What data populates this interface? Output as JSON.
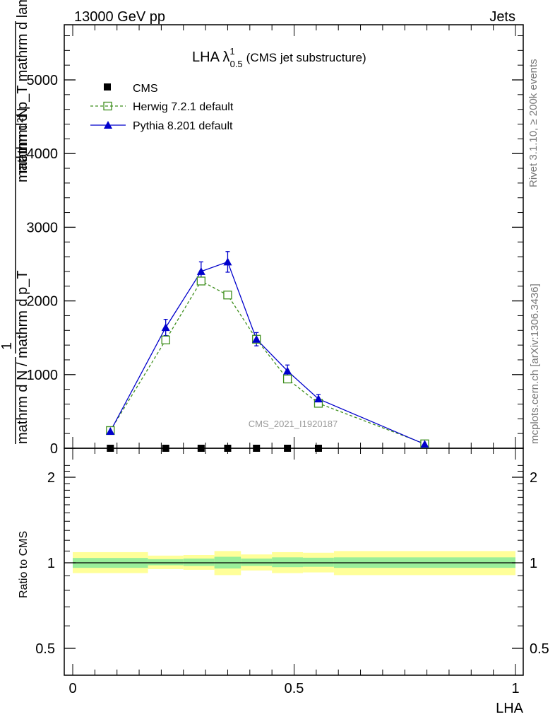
{
  "header": {
    "left": "13000 GeV pp",
    "right": "Jets"
  },
  "side_labels": {
    "rivet": "Rivet 3.1.10, ≥ 200k events",
    "mcplots": "mcplots.cern.ch [arXiv:1306.3436]"
  },
  "watermark": "CMS_2021_I1920187",
  "ratio_ylabel": "Ratio to CMS",
  "main_ylabel_lines": [
    "mathrm d²N",
    "mathrm d p_T mathrm d lambda",
    "1",
    "mathrm d N / mathrm d p_T"
  ],
  "main_ylabel_sub": [
    "2",
    "T",
    "T"
  ],
  "colors": {
    "herwig": "#3f8f1e",
    "pythia": "#0000cc",
    "band_inner": "#99ee99",
    "band_outer": "#ffff99"
  },
  "chart_data": [
    {
      "type": "line",
      "title": "LHA λ",
      "title_sup": "1",
      "title_sub": "0.5",
      "title_suffix": "(CMS jet substructure)",
      "xlim": [
        -0.02,
        1.02
      ],
      "ylim": [
        0,
        5800
      ],
      "yticks": [
        0,
        1000,
        2000,
        3000,
        4000,
        5000
      ],
      "ytick_labels": [
        "0",
        "1000",
        "2000",
        "3000",
        "4000",
        "5000"
      ],
      "series": [
        {
          "name": "CMS",
          "marker": "square-filled",
          "x": [
            0.085,
            0.21,
            0.29,
            0.35,
            0.415,
            0.485,
            0.555
          ],
          "y": [
            0,
            0,
            0,
            0,
            0,
            0,
            0
          ]
        },
        {
          "name": "Herwig 7.2.1 default",
          "marker": "square-open",
          "x": [
            0.085,
            0.21,
            0.29,
            0.35,
            0.415,
            0.485,
            0.555,
            0.795
          ],
          "y": [
            240,
            1470,
            2270,
            2080,
            1480,
            940,
            610,
            60
          ],
          "err": [
            0,
            0,
            0,
            0,
            0,
            0,
            0,
            0
          ]
        },
        {
          "name": "Pythia 8.201 default",
          "marker": "triangle-filled",
          "x": [
            0.085,
            0.21,
            0.29,
            0.35,
            0.415,
            0.485,
            0.555,
            0.795
          ],
          "y": [
            230,
            1640,
            2400,
            2530,
            1480,
            1050,
            670,
            55
          ],
          "err": [
            0,
            110,
            130,
            140,
            90,
            80,
            60,
            0
          ]
        }
      ]
    },
    {
      "type": "area",
      "xlabel": "LHA",
      "ylabel": "Ratio to CMS",
      "xlim": [
        -0.02,
        1.02
      ],
      "ylim": [
        0.4,
        2.3
      ],
      "log_y": true,
      "xticks": [
        0,
        0.5,
        1
      ],
      "xtick_labels": [
        "0",
        "0.5",
        "1"
      ],
      "yticks": [
        0.5,
        1,
        2
      ],
      "ytick_labels": [
        "0.5",
        "1",
        "2"
      ],
      "bins": [
        {
          "x0": 0.0,
          "x1": 0.17,
          "inner": [
            0.96,
            1.04
          ],
          "outer": [
            0.92,
            1.09
          ]
        },
        {
          "x0": 0.17,
          "x1": 0.25,
          "inner": [
            0.98,
            1.03
          ],
          "outer": [
            0.95,
            1.06
          ]
        },
        {
          "x0": 0.25,
          "x1": 0.32,
          "inner": [
            0.975,
            1.035
          ],
          "outer": [
            0.945,
            1.065
          ]
        },
        {
          "x0": 0.32,
          "x1": 0.38,
          "inner": [
            0.955,
            1.05
          ],
          "outer": [
            0.905,
            1.1
          ]
        },
        {
          "x0": 0.38,
          "x1": 0.45,
          "inner": [
            0.975,
            1.035
          ],
          "outer": [
            0.94,
            1.07
          ]
        },
        {
          "x0": 0.45,
          "x1": 0.52,
          "inner": [
            0.965,
            1.045
          ],
          "outer": [
            0.92,
            1.09
          ]
        },
        {
          "x0": 0.52,
          "x1": 0.59,
          "inner": [
            0.968,
            1.042
          ],
          "outer": [
            0.925,
            1.085
          ]
        },
        {
          "x0": 0.59,
          "x1": 1.0,
          "inner": [
            0.96,
            1.045
          ],
          "outer": [
            0.905,
            1.1
          ]
        }
      ]
    }
  ]
}
